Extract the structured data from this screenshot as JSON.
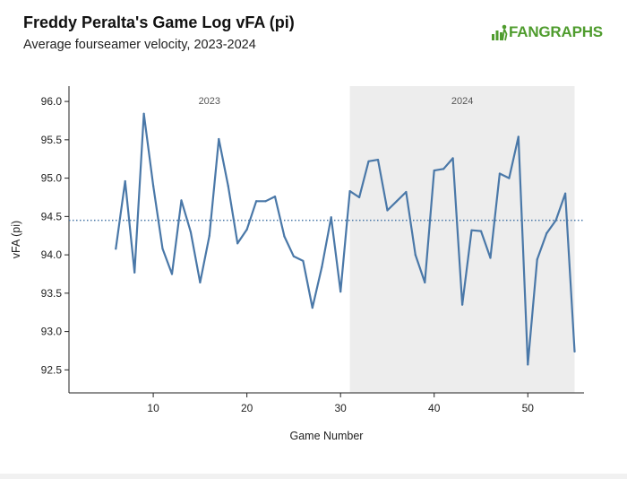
{
  "header": {
    "title": "Freddy Peralta's Game Log vFA (pi)",
    "subtitle": "Average fourseamer velocity, 2023-2024",
    "logo_text": "FANGRAPHS"
  },
  "colors": {
    "line": "#4a78a8",
    "reference_line": "#4a78a8",
    "shade_2024": "#ededed",
    "logo": "#4f9c2e"
  },
  "chart_data": {
    "type": "line",
    "title": "Freddy Peralta's Game Log vFA (pi)",
    "subtitle": "Average fourseamer velocity, 2023-2024",
    "xlabel": "Game Number",
    "ylabel": "vFA (pi)",
    "xlim": [
      1,
      56
    ],
    "ylim": [
      92.2,
      96.2
    ],
    "xticks": [
      10,
      20,
      30,
      40,
      50
    ],
    "yticks": [
      92.5,
      93.0,
      93.5,
      94.0,
      94.5,
      95.0,
      95.5,
      96.0
    ],
    "ytick_labels": [
      "92.5",
      "93.0",
      "93.5",
      "94.0",
      "94.5",
      "95.0",
      "95.5",
      "96.0"
    ],
    "reference_line": {
      "y": 94.45,
      "style": "dotted"
    },
    "season_regions": [
      {
        "label": "2023",
        "x_start": 1,
        "x_end": 31,
        "shaded": false
      },
      {
        "label": "2024",
        "x_start": 31,
        "x_end": 55,
        "shaded": true
      }
    ],
    "grid": false,
    "series": [
      {
        "x": [
          6,
          7,
          8,
          9,
          10,
          11,
          12,
          13,
          14,
          15,
          16,
          17,
          18,
          19,
          20,
          21,
          22,
          23,
          24,
          25,
          26,
          27,
          28,
          29,
          30,
          31,
          32,
          33,
          34,
          35,
          36,
          37,
          38,
          39,
          40,
          41,
          42,
          43,
          44,
          45,
          46,
          47,
          48,
          49,
          50,
          51,
          52,
          53,
          54,
          55
        ],
        "y": [
          94.08,
          94.96,
          93.77,
          95.84,
          94.9,
          94.08,
          93.75,
          94.71,
          94.3,
          93.64,
          94.25,
          95.51,
          94.9,
          94.15,
          94.33,
          94.7,
          94.7,
          94.76,
          94.24,
          93.98,
          93.92,
          93.31,
          93.84,
          94.49,
          93.52,
          94.83,
          94.75,
          95.22,
          95.24,
          94.58,
          94.7,
          94.82,
          94.0,
          93.64,
          95.1,
          95.12,
          95.26,
          93.35,
          94.32,
          94.31,
          93.96,
          95.06,
          95.0,
          95.54,
          92.57,
          93.94,
          94.28,
          94.45,
          94.8,
          92.74
        ]
      }
    ]
  }
}
